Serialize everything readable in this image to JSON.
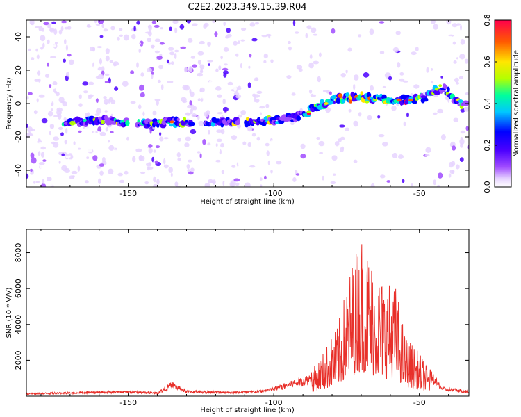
{
  "title": "C2E2.2023.349.15.39.R04",
  "chart_data": [
    {
      "type": "heatmap",
      "xlabel": "Height of straight line (km)",
      "ylabel": "Frequency (Hz)",
      "xlim": [
        -185,
        -33
      ],
      "ylim": [
        -50,
        50
      ],
      "x_ticks": [
        -150,
        -100,
        -50
      ],
      "y_ticks": [
        -40,
        -20,
        0,
        20,
        40
      ],
      "colorbar": {
        "label": "Normalized spectral amplitude",
        "range": [
          0.0,
          0.8
        ],
        "ticks": [
          0.0,
          0.2,
          0.4,
          0.6,
          0.8
        ],
        "colors": [
          "#ffffff",
          "#e6d3ff",
          "#a04bff",
          "#4b00ff",
          "#0000ff",
          "#00c8ff",
          "#00ff9c",
          "#b4ff00",
          "#ffe600",
          "#ff5a00",
          "#ff004b"
        ]
      },
      "echo_trace": [
        {
          "x": -170,
          "y": -11
        },
        {
          "x": -160,
          "y": -10
        },
        {
          "x": -145,
          "y": -12
        },
        {
          "x": -135,
          "y": -11
        },
        {
          "x": -120,
          "y": -11
        },
        {
          "x": -108,
          "y": -11
        },
        {
          "x": -100,
          "y": -10
        },
        {
          "x": -92,
          "y": -8
        },
        {
          "x": -85,
          "y": -2
        },
        {
          "x": -78,
          "y": 3
        },
        {
          "x": -70,
          "y": 4
        },
        {
          "x": -60,
          "y": 2
        },
        {
          "x": -55,
          "y": 2
        },
        {
          "x": -48,
          "y": 4
        },
        {
          "x": -42,
          "y": 10
        },
        {
          "x": -36,
          "y": 0
        }
      ]
    },
    {
      "type": "line",
      "xlabel": "Height of straight line (km)",
      "ylabel": "SNR (10 * V/V)",
      "xlim": [
        -185,
        -33
      ],
      "ylim": [
        0,
        9300
      ],
      "x_ticks": [
        -150,
        -100,
        -50
      ],
      "y_ticks": [
        2000,
        4000,
        6000,
        8000
      ],
      "series": [
        {
          "color": "#e8302a",
          "envelope": [
            {
              "x": -185,
              "y": 150
            },
            {
              "x": -160,
              "y": 250
            },
            {
              "x": -150,
              "y": 300
            },
            {
              "x": -140,
              "y": 200
            },
            {
              "x": -135,
              "y": 800
            },
            {
              "x": -130,
              "y": 300
            },
            {
              "x": -115,
              "y": 250
            },
            {
              "x": -105,
              "y": 300
            },
            {
              "x": -100,
              "y": 500
            },
            {
              "x": -95,
              "y": 800
            },
            {
              "x": -88,
              "y": 1200
            },
            {
              "x": -83,
              "y": 2500
            },
            {
              "x": -78,
              "y": 4000
            },
            {
              "x": -74,
              "y": 7000
            },
            {
              "x": -70,
              "y": 9300
            },
            {
              "x": -66,
              "y": 7500
            },
            {
              "x": -62,
              "y": 6500
            },
            {
              "x": -58,
              "y": 6200
            },
            {
              "x": -55,
              "y": 3500
            },
            {
              "x": -50,
              "y": 2400
            },
            {
              "x": -46,
              "y": 1400
            },
            {
              "x": -42,
              "y": 500
            },
            {
              "x": -33,
              "y": 300
            }
          ]
        }
      ]
    }
  ]
}
